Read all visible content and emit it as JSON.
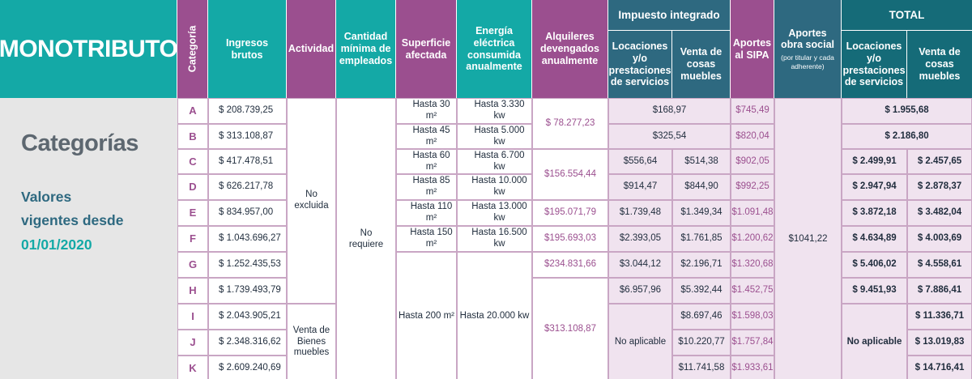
{
  "header": {
    "title": "MONOTRIBUTO",
    "categoria": "Categoría",
    "ingresos": "Ingresos brutos",
    "actividad": "Actividad",
    "empleados": "Cantidad mínima de empleados",
    "superficie": "Superficie afectada",
    "energia": "Energía eléctrica consumida anualmente",
    "alquileres": "Alquileres devengados anualmente",
    "impuesto_group": "Impuesto integrado",
    "imp_locaciones": "Locaciones y/o prestaciones de servicios",
    "imp_venta": "Venta de cosas muebles",
    "aportes_sipa": "Aportes al SIPA",
    "obra_social": "Aportes obra social",
    "obra_social_note": "(por titular y cada adherente)",
    "total_group": "TOTAL",
    "tot_locaciones": "Locaciones y/o prestaciones de servicios",
    "tot_venta": "Venta de cosas muebles"
  },
  "left": {
    "heading": "Categorías",
    "valores_line1": "Valores",
    "valores_line2": "vigentes desde",
    "date": "01/01/2020"
  },
  "merged": {
    "actividad_no_excluida": "No excluida",
    "actividad_venta": "Venta de Bienes muebles",
    "empleados": "No requiere",
    "superficie_200": "Hasta 200 m²",
    "energia_20000": "Hasta 20.000 kw",
    "alquiler_ab": "$ 78.277,23",
    "alquiler_cd": "$156.554,44",
    "alquiler_hk": "$313.108,87",
    "imp_a": "$168,97",
    "imp_b": "$325,54",
    "imp_no_aplicable": "No aplicable",
    "obra_social": "$1041,22",
    "tot_a": "$ 1.955,68",
    "tot_b": "$ 2.186,80",
    "tot_no_aplicable": "No aplicable"
  },
  "rows": [
    {
      "cat": "A",
      "ingresos": "$ 208.739,25",
      "superficie": "Hasta 30 m²",
      "energia": "Hasta 3.330 kw",
      "alquiler": "",
      "imp_loc": "",
      "imp_venta": "",
      "sipa": "$745,49",
      "tot_loc": "",
      "tot_venta": ""
    },
    {
      "cat": "B",
      "ingresos": "$ 313.108,87",
      "superficie": "Hasta 45 m²",
      "energia": "Hasta 5.000 kw",
      "alquiler": "",
      "imp_loc": "",
      "imp_venta": "",
      "sipa": "$820,04",
      "tot_loc": "",
      "tot_venta": ""
    },
    {
      "cat": "C",
      "ingresos": "$ 417.478,51",
      "superficie": "Hasta 60 m²",
      "energia": "Hasta 6.700 kw",
      "alquiler": "",
      "imp_loc": "$556,64",
      "imp_venta": "$514,38",
      "sipa": "$902,05",
      "tot_loc": "$ 2.499,91",
      "tot_venta": "$ 2.457,65"
    },
    {
      "cat": "D",
      "ingresos": "$ 626.217,78",
      "superficie": "Hasta 85 m²",
      "energia": "Hasta 10.000 kw",
      "alquiler": "",
      "imp_loc": "$914,47",
      "imp_venta": "$844,90",
      "sipa": "$992,25",
      "tot_loc": "$ 2.947,94",
      "tot_venta": "$ 2.878,37"
    },
    {
      "cat": "E",
      "ingresos": "$ 834.957,00",
      "superficie": "Hasta 110 m²",
      "energia": "Hasta 13.000 kw",
      "alquiler": "$195.071,79",
      "imp_loc": "$1.739,48",
      "imp_venta": "$1.349,34",
      "sipa": "$1.091,48",
      "tot_loc": "$ 3.872,18",
      "tot_venta": "$ 3.482,04"
    },
    {
      "cat": "F",
      "ingresos": "$ 1.043.696,27",
      "superficie": "Hasta 150 m²",
      "energia": "Hasta 16.500 kw",
      "alquiler": "$195.693,03",
      "imp_loc": "$2.393,05",
      "imp_venta": "$1.761,85",
      "sipa": "$1.200,62",
      "tot_loc": "$ 4.634,89",
      "tot_venta": "$ 4.003,69"
    },
    {
      "cat": "G",
      "ingresos": "$ 1.252.435,53",
      "superficie": "",
      "energia": "",
      "alquiler": "$234.831,66",
      "imp_loc": "$3.044,12",
      "imp_venta": "$2.196,71",
      "sipa": "$1.320,68",
      "tot_loc": "$ 5.406,02",
      "tot_venta": "$ 4.558,61"
    },
    {
      "cat": "H",
      "ingresos": "$ 1.739.493,79",
      "superficie": "",
      "energia": "",
      "alquiler": "",
      "imp_loc": "$6.957,96",
      "imp_venta": "$5.392,44",
      "sipa": "$1.452,75",
      "tot_loc": "$ 9.451,93",
      "tot_venta": "$ 7.886,41"
    },
    {
      "cat": "I",
      "ingresos": "$ 2.043.905,21",
      "superficie": "",
      "energia": "",
      "alquiler": "",
      "imp_loc": "",
      "imp_venta": "$8.697,46",
      "sipa": "$1.598,03",
      "tot_loc": "",
      "tot_venta": "$ 11.336,71"
    },
    {
      "cat": "J",
      "ingresos": "$ 2.348.316,62",
      "superficie": "",
      "energia": "",
      "alquiler": "",
      "imp_loc": "",
      "imp_venta": "$10.220,77",
      "sipa": "$1.757,84",
      "tot_loc": "",
      "tot_venta": "$ 13.019,83"
    },
    {
      "cat": "K",
      "ingresos": "$ 2.609.240,69",
      "superficie": "",
      "energia": "",
      "alquiler": "",
      "imp_loc": "",
      "imp_venta": "$11.741,58",
      "sipa": "$1.933,61",
      "tot_loc": "",
      "tot_venta": "$ 14.716,41"
    }
  ]
}
